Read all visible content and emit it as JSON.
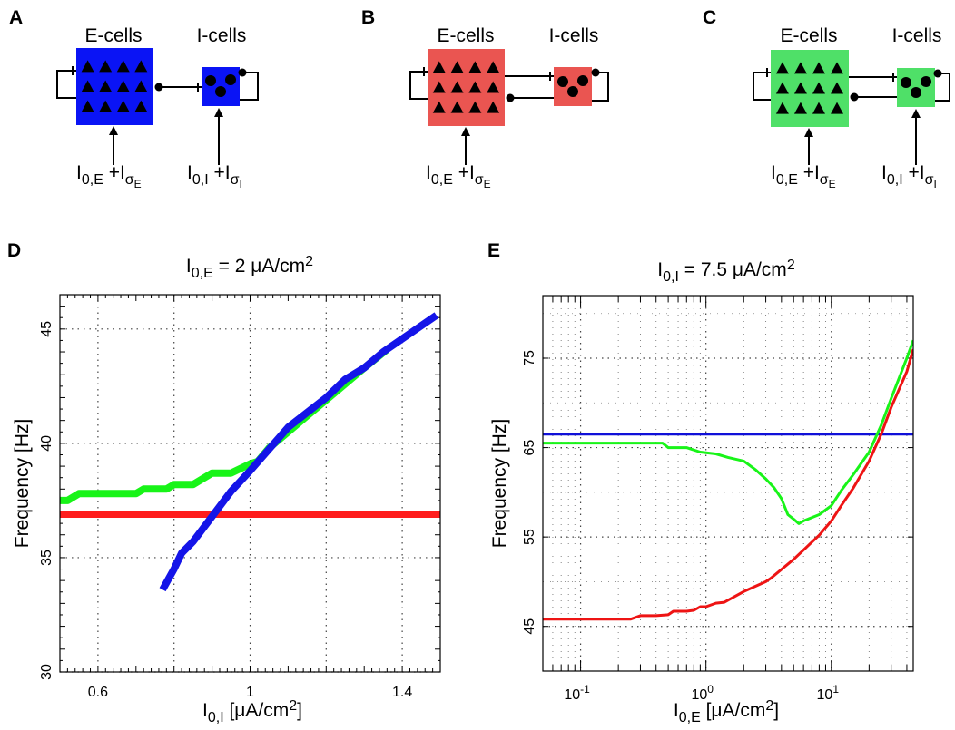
{
  "panels": [
    {
      "label": "A",
      "ecells": "E-cells",
      "icells": "I-cells",
      "color": "#0a14f5",
      "input_e": {
        "main": "I",
        "sub": "0,E",
        "plus": " +I",
        "sigma": "σ",
        "sigsub": "E"
      },
      "input_i": {
        "main": "I",
        "sub": "0,I",
        "plus": " +I",
        "sigma": "σ",
        "sigsub": "I"
      }
    },
    {
      "label": "B",
      "ecells": "E-cells",
      "icells": "I-cells",
      "color": "#ea5551",
      "input_e": {
        "main": "I",
        "sub": "0,E",
        "plus": " +I",
        "sigma": "σ",
        "sigsub": "E"
      }
    },
    {
      "label": "C",
      "ecells": "E-cells",
      "icells": "I-cells",
      "color": "#4fe068",
      "input_e": {
        "main": "I",
        "sub": "0,E",
        "plus": " +I",
        "sigma": "σ",
        "sigsub": "E"
      },
      "input_i": {
        "main": "I",
        "sub": "0,I",
        "plus": " +I",
        "sigma": "σ",
        "sigsub": "I"
      }
    }
  ],
  "chart_data": [
    {
      "panel": "D",
      "type": "line",
      "title": {
        "main": "I",
        "sub": "0,E",
        "rest": " = 2 μA/cm",
        "sup": "2"
      },
      "xlabel": {
        "main": "I",
        "sub": "0,I",
        "rest": " [μA/cm",
        "sup": "2",
        "end": "]"
      },
      "ylabel": "Frequency [Hz]",
      "xlim": [
        0.5,
        1.5
      ],
      "ylim": [
        30,
        46.5
      ],
      "x_ticks": [
        0.6,
        1,
        1.4
      ],
      "x_tick_labels": [
        "0.6",
        "1",
        "1.4"
      ],
      "y_ticks": [
        30,
        35,
        40,
        45
      ],
      "y_tick_labels": [
        "30",
        "35",
        "40",
        "45"
      ],
      "grid": true,
      "series": [
        {
          "color": "#ff1c1c",
          "width": 8,
          "x": [
            0.5,
            1.5
          ],
          "y": [
            36.9,
            36.9
          ]
        },
        {
          "color": "#18f418",
          "width": 8,
          "x": [
            0.5,
            0.52,
            0.55,
            0.6,
            0.65,
            0.7,
            0.72,
            0.75,
            0.78,
            0.8,
            0.85,
            0.9,
            0.95,
            1.0,
            1.02,
            1.05,
            1.1,
            1.15,
            1.2,
            1.25,
            1.3,
            1.36
          ],
          "y": [
            37.5,
            37.5,
            37.8,
            37.8,
            37.8,
            37.8,
            38.0,
            38.0,
            38.0,
            38.2,
            38.2,
            38.7,
            38.7,
            39.1,
            39.2,
            39.8,
            40.5,
            41.2,
            41.9,
            42.6,
            43.3,
            44.1
          ]
        },
        {
          "color": "#1414e8",
          "width": 8,
          "x": [
            0.77,
            0.8,
            0.82,
            0.85,
            0.9,
            0.95,
            1.0,
            1.1,
            1.2,
            1.25,
            1.3,
            1.35,
            1.49
          ],
          "y": [
            33.6,
            34.5,
            35.2,
            35.7,
            36.8,
            37.9,
            38.8,
            40.7,
            42.0,
            42.8,
            43.3,
            44.0,
            45.6
          ]
        }
      ]
    },
    {
      "panel": "E",
      "type": "line",
      "title": {
        "main": "I",
        "sub": "0,I",
        "rest": " = 7.5 μA/cm",
        "sup": "2"
      },
      "xlabel": {
        "main": "I",
        "sub": "0,E",
        "rest": " [μA/cm",
        "sup": "2",
        "end": "]"
      },
      "ylabel": "Frequency [Hz]",
      "x_scale": "log",
      "xlim": [
        0.05,
        45
      ],
      "ylim": [
        40,
        82
      ],
      "x_ticks": [
        0.1,
        1,
        10
      ],
      "x_tick_labels": [
        {
          "base": "10",
          "exp": "-1"
        },
        {
          "base": "10",
          "exp": "0"
        },
        {
          "base": "10",
          "exp": "1"
        }
      ],
      "y_ticks": [
        45,
        55,
        65,
        75
      ],
      "y_tick_labels": [
        "45",
        "55",
        "65",
        "75"
      ],
      "grid": true,
      "series": [
        {
          "color": "#1010d8",
          "width": 3,
          "x": [
            0.05,
            45
          ],
          "y": [
            66.5,
            66.5
          ]
        },
        {
          "color": "#18f418",
          "width": 3,
          "x": [
            0.05,
            0.2,
            0.45,
            0.5,
            0.7,
            0.9,
            1.2,
            1.5,
            2,
            2.5,
            3,
            3.5,
            4,
            4.5,
            5,
            5.5,
            6,
            8,
            10,
            12,
            15,
            20,
            25,
            30,
            40,
            45
          ],
          "y": [
            65.5,
            65.5,
            65.5,
            65.0,
            65.0,
            64.5,
            64.3,
            63.9,
            63.5,
            62.5,
            61.5,
            60.5,
            59.3,
            57.5,
            57.0,
            56.5,
            56.8,
            57.5,
            58.5,
            60.2,
            62.0,
            64.5,
            67.5,
            70.5,
            75.0,
            77.0
          ]
        },
        {
          "color": "#ee1414",
          "width": 3,
          "x": [
            0.05,
            0.25,
            0.3,
            0.4,
            0.5,
            0.55,
            0.7,
            0.8,
            0.9,
            1.0,
            1.2,
            1.4,
            2,
            3,
            3.3,
            5,
            8,
            10,
            12,
            15,
            20,
            25,
            30,
            40,
            45
          ],
          "y": [
            45.8,
            45.8,
            46.2,
            46.2,
            46.3,
            46.7,
            46.7,
            46.8,
            47.2,
            47.2,
            47.6,
            47.7,
            48.9,
            50.0,
            50.4,
            52.5,
            55.2,
            56.8,
            58.5,
            60.5,
            63.5,
            66.5,
            69.5,
            73.5,
            76.0
          ]
        }
      ]
    }
  ]
}
